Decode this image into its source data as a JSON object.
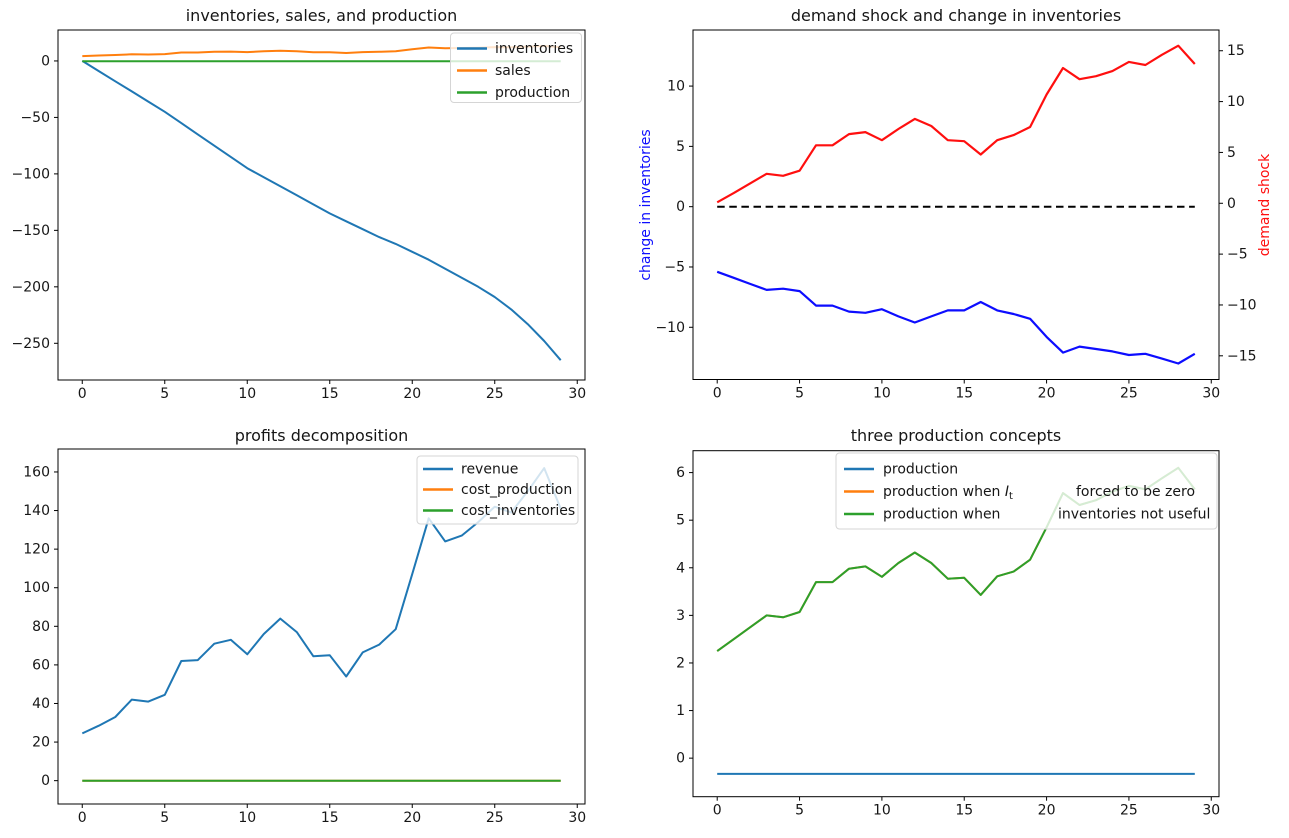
{
  "figure": {
    "background": "#ffffff"
  },
  "palette": {
    "mpl_blue": "#1f77b4",
    "mpl_orange": "#ff7f0e",
    "mpl_green": "#2ca02c",
    "pure_blue": "#0d0dff",
    "pure_red": "#ff0f0f",
    "black": "#000000",
    "spine": "#000000",
    "legend_border": "#d5d5d5"
  },
  "x_ticks": [
    {
      "v": 0,
      "label": "0"
    },
    {
      "v": 5,
      "label": "5"
    },
    {
      "v": 10,
      "label": "10"
    },
    {
      "v": 15,
      "label": "15"
    },
    {
      "v": 20,
      "label": "20"
    },
    {
      "v": 25,
      "label": "25"
    },
    {
      "v": 30,
      "label": "30"
    }
  ],
  "chart_data": [
    {
      "type": "line",
      "title": "inventories, sales, and production",
      "xlim": [
        -1.5,
        30.5
      ],
      "ylim": [
        -282,
        27
      ],
      "grid": false,
      "legend_position": "upper right",
      "x": [
        0,
        1,
        2,
        3,
        4,
        5,
        6,
        7,
        8,
        9,
        10,
        11,
        12,
        13,
        14,
        15,
        16,
        17,
        18,
        19,
        20,
        21,
        22,
        23,
        24,
        25,
        26,
        27,
        28,
        29
      ],
      "y_ticks": [
        {
          "v": 0,
          "label": "0"
        },
        {
          "v": -50,
          "label": "−50"
        },
        {
          "v": -100,
          "label": "−100"
        },
        {
          "v": -150,
          "label": "−150"
        },
        {
          "v": -200,
          "label": "−200"
        },
        {
          "v": -250,
          "label": "−250"
        }
      ],
      "series": [
        {
          "name": "inventories",
          "color": "#1f77b4",
          "axis": "left",
          "line_style": "solid",
          "values": [
            0,
            -9,
            -18,
            -27,
            -36,
            -45,
            -55,
            -65,
            -75,
            -85,
            -95,
            -103,
            -111,
            -119,
            -127,
            -135,
            -142,
            -149,
            -156,
            -162,
            -169,
            -176,
            -184,
            -192,
            -200,
            -209,
            -220,
            -233,
            -248,
            -265
          ]
        },
        {
          "name": "sales",
          "color": "#ff7f0e",
          "axis": "left",
          "line_style": "solid",
          "values": [
            4.3,
            4.8,
            5.3,
            5.9,
            5.7,
            6.1,
            7.5,
            7.5,
            8.2,
            8.3,
            7.8,
            8.5,
            9.0,
            8.5,
            7.7,
            7.7,
            7.0,
            7.8,
            8.1,
            8.6,
            10.4,
            11.9,
            11.3,
            11.5,
            11.7,
            12.3,
            12.1,
            12.7,
            13.2,
            12.1
          ]
        },
        {
          "name": "production",
          "color": "#2ca02c",
          "axis": "left",
          "line_style": "solid",
          "values": [
            -0.33,
            -0.33,
            -0.33,
            -0.33,
            -0.33,
            -0.33,
            -0.33,
            -0.33,
            -0.33,
            -0.33,
            -0.33,
            -0.33,
            -0.33,
            -0.33,
            -0.33,
            -0.33,
            -0.33,
            -0.33,
            -0.33,
            -0.33,
            -0.33,
            -0.33,
            -0.33,
            -0.33,
            -0.33,
            -0.33,
            -0.33,
            -0.33,
            -0.33,
            -0.33
          ]
        }
      ],
      "legend": {
        "rows": [
          {
            "color": "#1f77b4",
            "segments": [
              {
                "text": "inventories"
              }
            ]
          },
          {
            "color": "#ff7f0e",
            "segments": [
              {
                "text": "sales"
              }
            ]
          },
          {
            "color": "#2ca02c",
            "segments": [
              {
                "text": "production"
              }
            ]
          }
        ]
      }
    },
    {
      "type": "line",
      "title": "demand shock and change in inventories",
      "ylabel_left": "change in inventories",
      "ylabel_right": "demand shock",
      "xlim": [
        -1.5,
        30.5
      ],
      "ylim_left": [
        -14.3,
        14.7
      ],
      "ylim_right": [
        -17.3,
        17.0
      ],
      "grid": false,
      "legend_position": "none",
      "x": [
        0,
        1,
        2,
        3,
        4,
        5,
        6,
        7,
        8,
        9,
        10,
        11,
        12,
        13,
        14,
        15,
        16,
        17,
        18,
        19,
        20,
        21,
        22,
        23,
        24,
        25,
        26,
        27,
        28,
        29
      ],
      "y_ticks": [
        {
          "v": 10,
          "label": "10"
        },
        {
          "v": 5,
          "label": "5"
        },
        {
          "v": 0,
          "label": "0"
        },
        {
          "v": -5,
          "label": "−5"
        },
        {
          "v": -10,
          "label": "−10"
        }
      ],
      "y_ticks_right": [
        {
          "v": 15,
          "label": "15"
        },
        {
          "v": 10,
          "label": "10"
        },
        {
          "v": 5,
          "label": "5"
        },
        {
          "v": 0,
          "label": "0"
        },
        {
          "v": -5,
          "label": "−5"
        },
        {
          "v": -10,
          "label": "−10"
        },
        {
          "v": -15,
          "label": "−15"
        }
      ],
      "series": [
        {
          "name": "change in inventories",
          "color": "#0d0dff",
          "axis": "left",
          "line_style": "solid",
          "values": [
            -5.4,
            -5.9,
            -6.4,
            -6.9,
            -6.8,
            -7.0,
            -8.2,
            -8.2,
            -8.7,
            -8.8,
            -8.5,
            -9.1,
            -9.6,
            -9.1,
            -8.6,
            -8.6,
            -7.9,
            -8.6,
            -8.9,
            -9.3,
            -10.8,
            -12.1,
            -11.6,
            -11.8,
            -12.0,
            -12.3,
            -12.2,
            -12.6,
            -13.0,
            -12.2
          ]
        },
        {
          "name": "zero line",
          "color": "#000000",
          "axis": "left",
          "line_style": "dashed",
          "values": [
            0,
            0,
            0,
            0,
            0,
            0,
            0,
            0,
            0,
            0,
            0,
            0,
            0,
            0,
            0,
            0,
            0,
            0,
            0,
            0,
            0,
            0,
            0,
            0,
            0,
            0,
            0,
            0,
            0,
            0
          ]
        },
        {
          "name": "demand shock",
          "color": "#ff0f0f",
          "axis": "right",
          "line_style": "solid",
          "values": [
            0.1,
            1.0,
            1.95,
            2.9,
            2.7,
            3.2,
            5.7,
            5.7,
            6.8,
            7.0,
            6.2,
            7.3,
            8.3,
            7.6,
            6.2,
            6.1,
            4.8,
            6.2,
            6.7,
            7.5,
            10.7,
            13.3,
            12.2,
            12.5,
            13.0,
            13.9,
            13.6,
            14.6,
            15.5,
            13.7
          ]
        }
      ]
    },
    {
      "type": "line",
      "title": "profits decomposition",
      "xlim": [
        -1.5,
        30.5
      ],
      "ylim": [
        -12,
        172
      ],
      "grid": false,
      "legend_position": "upper right",
      "x": [
        0,
        1,
        2,
        3,
        4,
        5,
        6,
        7,
        8,
        9,
        10,
        11,
        12,
        13,
        14,
        15,
        16,
        17,
        18,
        19,
        20,
        21,
        22,
        23,
        24,
        25,
        26,
        27,
        28,
        29
      ],
      "y_ticks": [
        {
          "v": 0,
          "label": "0"
        },
        {
          "v": 20,
          "label": "20"
        },
        {
          "v": 40,
          "label": "40"
        },
        {
          "v": 60,
          "label": "60"
        },
        {
          "v": 80,
          "label": "80"
        },
        {
          "v": 100,
          "label": "100"
        },
        {
          "v": 120,
          "label": "120"
        },
        {
          "v": 140,
          "label": "140"
        },
        {
          "v": 160,
          "label": "160"
        }
      ],
      "series": [
        {
          "name": "revenue",
          "color": "#1f77b4",
          "axis": "left",
          "line_style": "solid",
          "values": [
            24.5,
            28.5,
            33,
            42,
            41,
            44.5,
            62,
            62.5,
            71,
            73,
            65.5,
            76,
            84,
            77,
            64.5,
            65,
            54,
            66.5,
            70.5,
            78.5,
            107,
            136,
            124,
            127,
            134,
            142,
            139,
            150,
            162,
            141
          ]
        },
        {
          "name": "cost_production",
          "color": "#ff7f0e",
          "axis": "left",
          "line_style": "solid",
          "values": [
            0,
            0,
            0,
            0,
            0,
            0,
            0,
            0,
            0,
            0,
            0,
            0,
            0,
            0,
            0,
            0,
            0,
            0,
            0,
            0,
            0,
            0,
            0,
            0,
            0,
            0,
            0,
            0,
            0,
            0
          ]
        },
        {
          "name": "cost_inventories",
          "color": "#2ca02c",
          "axis": "left",
          "line_style": "solid",
          "values": [
            0,
            0,
            0,
            0,
            0,
            0,
            0,
            0,
            0,
            0,
            0,
            0,
            0,
            0,
            0,
            0,
            0,
            0,
            0,
            0,
            0,
            0,
            0,
            0,
            0,
            0,
            0,
            0,
            0,
            0
          ]
        }
      ],
      "legend": {
        "rows": [
          {
            "color": "#1f77b4",
            "segments": [
              {
                "text": "revenue"
              }
            ]
          },
          {
            "color": "#ff7f0e",
            "segments": [
              {
                "text": "cost_production"
              }
            ]
          },
          {
            "color": "#2ca02c",
            "segments": [
              {
                "text": "cost_inventories"
              }
            ]
          }
        ]
      }
    },
    {
      "type": "line",
      "title": "three production concepts",
      "xlim": [
        -1.5,
        30.5
      ],
      "ylim": [
        -0.8,
        6.45
      ],
      "grid": false,
      "legend_position": "upper center",
      "x": [
        0,
        1,
        2,
        3,
        4,
        5,
        6,
        7,
        8,
        9,
        10,
        11,
        12,
        13,
        14,
        15,
        16,
        17,
        18,
        19,
        20,
        21,
        22,
        23,
        24,
        25,
        26,
        27,
        28,
        29
      ],
      "y_ticks": [
        {
          "v": 0,
          "label": "0"
        },
        {
          "v": 1,
          "label": "1"
        },
        {
          "v": 2,
          "label": "2"
        },
        {
          "v": 3,
          "label": "3"
        },
        {
          "v": 4,
          "label": "4"
        },
        {
          "v": 5,
          "label": "5"
        },
        {
          "v": 6,
          "label": "6"
        }
      ],
      "series": [
        {
          "name": "production",
          "color": "#1f77b4",
          "axis": "left",
          "line_style": "solid",
          "values": [
            -0.33,
            -0.33,
            -0.33,
            -0.33,
            -0.33,
            -0.33,
            -0.33,
            -0.33,
            -0.33,
            -0.33,
            -0.33,
            -0.33,
            -0.33,
            -0.33,
            -0.33,
            -0.33,
            -0.33,
            -0.33,
            -0.33,
            -0.33,
            -0.33,
            -0.33,
            -0.33,
            -0.33,
            -0.33,
            -0.33,
            -0.33,
            -0.33,
            -0.33,
            -0.33
          ]
        },
        {
          "name": "production when I_t forced to be zero",
          "color": "#ff7f0e",
          "axis": "left",
          "line_style": "solid",
          "values": [
            2.25,
            2.5,
            2.75,
            3.0,
            2.96,
            3.07,
            3.7,
            3.7,
            3.98,
            4.03,
            3.81,
            4.1,
            4.32,
            4.1,
            3.77,
            3.79,
            3.43,
            3.82,
            3.92,
            4.17,
            4.85,
            5.57,
            5.32,
            5.42,
            5.6,
            5.72,
            5.65,
            5.88,
            6.1,
            5.65
          ]
        },
        {
          "name": "production when inventories not useful",
          "color": "#2ca02c",
          "axis": "left",
          "line_style": "solid",
          "values": [
            2.25,
            2.5,
            2.75,
            3.0,
            2.96,
            3.07,
            3.7,
            3.7,
            3.98,
            4.03,
            3.81,
            4.1,
            4.32,
            4.1,
            3.77,
            3.79,
            3.43,
            3.82,
            3.92,
            4.17,
            4.85,
            5.57,
            5.32,
            5.42,
            5.6,
            5.72,
            5.65,
            5.88,
            6.1,
            5.65
          ]
        }
      ],
      "legend": {
        "rows": [
          {
            "color": "#1f77b4",
            "segments": [
              {
                "text": "production"
              }
            ]
          },
          {
            "color": "#ff7f0e",
            "segments": [
              {
                "text": "production when "
              },
              {
                "text": "I",
                "style": "math-italic"
              },
              {
                "text": "t",
                "style": "subscript"
              },
              {
                "text": "forced to be zero",
                "part": 2
              }
            ]
          },
          {
            "color": "#2ca02c",
            "segments": [
              {
                "text": "production when"
              },
              {
                "text": "inventories not useful",
                "part": 2
              }
            ]
          }
        ]
      }
    }
  ]
}
